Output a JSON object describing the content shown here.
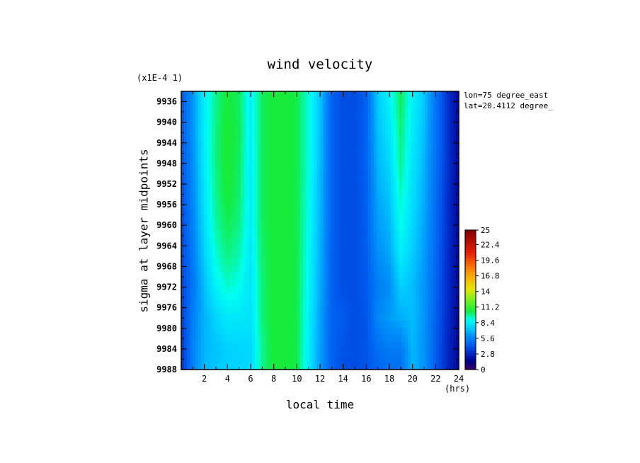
{
  "chart_data": {
    "type": "heatmap",
    "title": "wind velocity",
    "xlabel": "local time",
    "ylabel": "sigma at layer midpoints",
    "x_units": "(hrs)",
    "y_scale_label": "(x1E-4 1)",
    "annotations": [
      "lon=75 degree_east",
      "lat=20.4112 degree_"
    ],
    "xlim": [
      0,
      24
    ],
    "ylim": [
      9934,
      9988
    ],
    "y_inverted": true,
    "x_ticks": [
      "2",
      "4",
      "6",
      "8",
      "10",
      "12",
      "14",
      "16",
      "18",
      "20",
      "22",
      "24"
    ],
    "y_ticks": [
      "9936",
      "9940",
      "9944",
      "9948",
      "9952",
      "9956",
      "9960",
      "9964",
      "9968",
      "9972",
      "9976",
      "9980",
      "9984",
      "9988"
    ],
    "colorbar": {
      "min": 0,
      "max": 25,
      "ticks": [
        "0",
        "2.8",
        "5.6",
        "8.4",
        "11.2",
        "14",
        "16.8",
        "19.6",
        "22.4",
        "25"
      ]
    },
    "x": [
      0,
      1,
      2,
      3,
      4,
      5,
      6,
      7,
      8,
      9,
      10,
      11,
      12,
      13,
      14,
      15,
      16,
      17,
      18,
      19,
      20,
      21,
      22,
      23,
      24
    ],
    "y": [
      9936,
      9942,
      9948,
      9954,
      9960,
      9966,
      9972,
      9978,
      9984,
      9988
    ],
    "z": [
      [
        4.2,
        6.2,
        8.5,
        9.8,
        10.6,
        10.2,
        8.6,
        10.2,
        10.6,
        10.6,
        10.4,
        9.2,
        7.4,
        4.6,
        4.0,
        4.0,
        4.6,
        7.4,
        8.6,
        10.2,
        8.6,
        7.4,
        5.2,
        3.4,
        1.8
      ],
      [
        4.2,
        6.2,
        8.5,
        9.9,
        10.7,
        10.3,
        8.6,
        10.2,
        10.6,
        10.6,
        10.4,
        9.2,
        7.3,
        4.6,
        4.0,
        4.0,
        4.6,
        7.2,
        8.2,
        10.0,
        8.4,
        7.2,
        5.2,
        3.4,
        1.8
      ],
      [
        4.1,
        6.0,
        8.4,
        9.9,
        10.7,
        10.2,
        8.5,
        10.2,
        10.6,
        10.6,
        10.4,
        9.2,
        7.2,
        4.6,
        4.0,
        4.0,
        4.6,
        7.0,
        7.8,
        9.8,
        8.2,
        7.0,
        5.1,
        3.4,
        1.8
      ],
      [
        4.0,
        5.8,
        8.2,
        9.8,
        10.6,
        10.1,
        8.5,
        10.2,
        10.6,
        10.6,
        10.4,
        9.1,
        7.1,
        4.6,
        4.0,
        4.0,
        4.5,
        6.7,
        7.4,
        9.4,
        8.0,
        6.8,
        5.0,
        3.3,
        1.8
      ],
      [
        3.9,
        5.6,
        8.0,
        9.6,
        10.3,
        9.9,
        8.5,
        10.2,
        10.6,
        10.6,
        10.4,
        9.0,
        7.0,
        4.6,
        4.0,
        4.0,
        4.5,
        6.4,
        7.0,
        9.0,
        7.8,
        6.6,
        4.9,
        3.3,
        1.8
      ],
      [
        3.8,
        5.4,
        7.6,
        9.2,
        9.9,
        9.5,
        8.3,
        10.1,
        10.6,
        10.6,
        10.4,
        8.9,
        6.9,
        4.6,
        4.0,
        4.0,
        4.4,
        6.0,
        6.6,
        8.4,
        7.5,
        6.4,
        4.8,
        3.2,
        1.8
      ],
      [
        3.7,
        5.2,
        7.2,
        8.6,
        9.3,
        9.0,
        8.2,
        10.0,
        10.6,
        10.6,
        10.4,
        8.8,
        6.8,
        4.6,
        4.0,
        4.0,
        4.4,
        5.4,
        6.0,
        7.6,
        7.2,
        6.2,
        4.7,
        3.2,
        1.8
      ],
      [
        3.5,
        5.6,
        6.9,
        7.7,
        8.3,
        8.3,
        8.1,
        10.0,
        10.6,
        10.6,
        10.4,
        8.6,
        6.6,
        4.6,
        4.4,
        4.0,
        4.2,
        5.8,
        6.4,
        6.8,
        7.2,
        6.2,
        4.6,
        3.1,
        1.8
      ],
      [
        3.3,
        5.6,
        7.0,
        7.3,
        7.6,
        7.7,
        7.8,
        9.8,
        10.6,
        10.6,
        10.4,
        8.5,
        6.5,
        4.6,
        4.2,
        4.0,
        4.2,
        5.0,
        5.4,
        5.4,
        7.0,
        6.2,
        4.5,
        3.0,
        1.8
      ],
      [
        3.2,
        5.6,
        7.1,
        7.4,
        7.6,
        7.7,
        7.8,
        9.8,
        10.6,
        10.6,
        10.4,
        8.4,
        6.4,
        4.6,
        4.0,
        4.0,
        4.2,
        4.8,
        5.0,
        5.0,
        7.0,
        6.2,
        4.4,
        3.0,
        1.8
      ]
    ]
  }
}
